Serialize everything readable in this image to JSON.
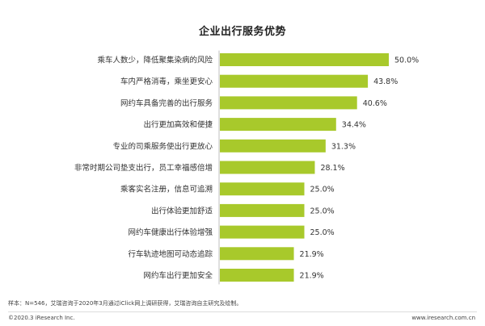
{
  "chart_data": {
    "type": "bar",
    "orientation": "horizontal",
    "title": "企业出行服务优势",
    "categories": [
      "乘车人数少，降低聚集染病的风险",
      "车内严格消毒，乘坐更安心",
      "网约车具备完善的出行服务",
      "出行更加高效和便捷",
      "专业的司乘服务使出行更放心",
      "非常时期公司垫支出行，员工幸福感倍增",
      "乘客实名注册，信息可追溯",
      "出行体验更加舒适",
      "网约车健康出行体验增强",
      "行车轨迹地图可动态追踪",
      "网约车出行更加安全"
    ],
    "values": [
      50.0,
      43.8,
      40.6,
      34.4,
      31.3,
      28.1,
      25.0,
      25.0,
      25.0,
      21.9,
      21.9
    ],
    "value_labels": [
      "50.0%",
      "43.8%",
      "40.6%",
      "34.4%",
      "31.3%",
      "28.1%",
      "25.0%",
      "25.0%",
      "25.0%",
      "21.9%",
      "21.9%"
    ],
    "xlim": [
      0,
      50
    ],
    "bar_color": "#a8c92b",
    "grid": false
  },
  "footer": {
    "note": "样本：N=546，艾瑞咨询于2020年3月通过iClick网上调研获得，艾瑞咨询自主研究及绘制。",
    "copyright": "©2020.3 iResearch Inc.",
    "website": "www.iresearch.com.cn"
  }
}
